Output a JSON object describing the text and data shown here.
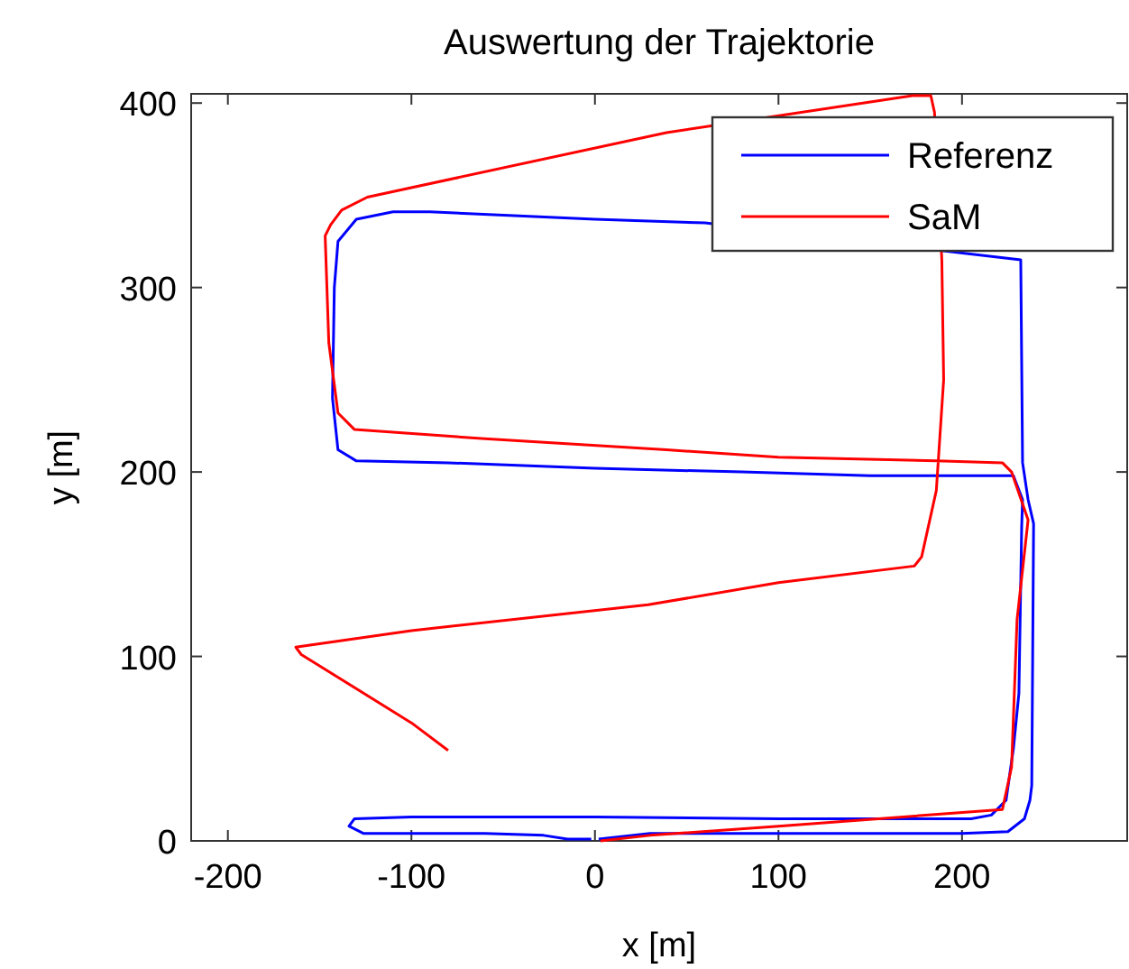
{
  "chart_data": {
    "type": "line",
    "title": "Auswertung der Trajektorie",
    "xlabel": "x [m]",
    "ylabel": "y [m]",
    "xlim": [
      -220,
      290
    ],
    "ylim": [
      0,
      405
    ],
    "xticks": [
      -200,
      -100,
      0,
      100,
      200
    ],
    "yticks": [
      0,
      100,
      200,
      300,
      400
    ],
    "grid": false,
    "legend": "top right",
    "marker": "none",
    "line_style": "solid",
    "series": [
      {
        "name": "Referenz",
        "color": "#0000ff",
        "x": [
          2,
          30,
          100,
          200,
          225,
          234,
          237,
          238,
          238.5,
          239,
          236,
          233,
          232,
          60,
          0,
          -90,
          -110,
          -130,
          -140,
          -142,
          -143,
          -140,
          -130,
          -80,
          0,
          80,
          150,
          228,
          233,
          232.5,
          232,
          231,
          228,
          224,
          216,
          205,
          100,
          0,
          -100,
          -131,
          -134,
          -126,
          -60,
          -28,
          -15,
          -2
        ],
        "values": [
          1,
          4,
          4,
          4,
          5,
          12,
          22,
          30,
          100,
          172,
          185,
          205,
          315,
          335,
          337,
          341,
          341,
          337,
          325,
          300,
          240,
          212,
          206,
          205,
          202,
          200,
          198,
          198,
          185,
          170,
          140,
          80,
          50,
          22,
          14,
          12,
          12,
          13,
          13,
          12,
          8,
          4,
          4,
          3,
          1,
          1
        ]
      },
      {
        "name": "SaM",
        "color": "#ff0000",
        "x": [
          3,
          30,
          100,
          222,
          227,
          230,
          236,
          227,
          222,
          186,
          100,
          39,
          -60,
          -131,
          -140,
          -145,
          -147,
          -144,
          -138,
          -124,
          39,
          173,
          183,
          185,
          189,
          190,
          186,
          178,
          174,
          100,
          29,
          -100,
          -163,
          -160,
          -100,
          -80
        ],
        "values": [
          0,
          3,
          8,
          17,
          40,
          120,
          174,
          200,
          205,
          206,
          208,
          212,
          218,
          223,
          232,
          270,
          328,
          334,
          342,
          349,
          384,
          404,
          404,
          395,
          315,
          250,
          190,
          154,
          149,
          140,
          128,
          114,
          105,
          101,
          64,
          49
        ]
      }
    ]
  }
}
